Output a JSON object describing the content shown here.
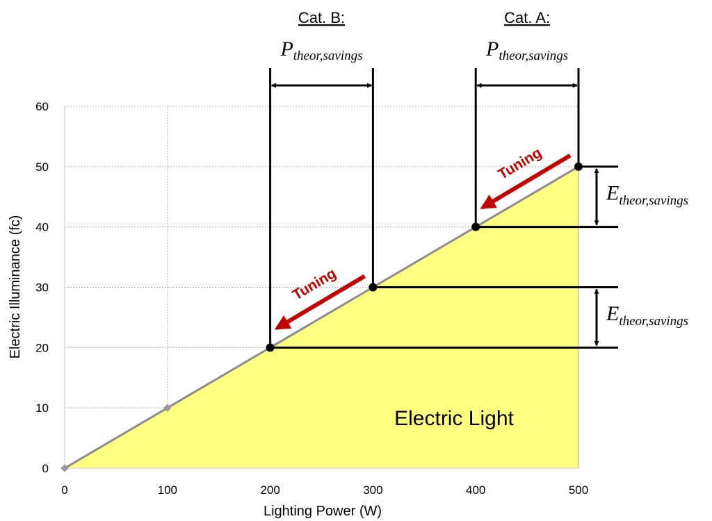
{
  "chart_data": {
    "type": "area",
    "xlabel": "Lighting Power (W)",
    "ylabel": "Electric Illuminance (fc)",
    "xlim": [
      0,
      500
    ],
    "ylim": [
      0,
      60
    ],
    "x_ticks": [
      "0",
      "100",
      "200",
      "300",
      "400",
      "500"
    ],
    "y_ticks": [
      "0",
      "10",
      "20",
      "30",
      "40",
      "50",
      "60"
    ],
    "grid": true,
    "series": [
      {
        "x": [
          0,
          100,
          200,
          300,
          400,
          500
        ],
        "y": [
          0,
          10,
          20,
          30,
          40,
          50
        ]
      }
    ],
    "markers": [
      [
        200,
        20
      ],
      [
        300,
        30
      ],
      [
        400,
        40
      ],
      [
        500,
        50
      ]
    ],
    "area_label": "Electric Light",
    "categories": [
      {
        "title": "Cat. B:",
        "x_range": [
          200,
          300
        ],
        "y_range": [
          20,
          30
        ]
      },
      {
        "title": "Cat. A:",
        "x_range": [
          400,
          500
        ],
        "y_range": [
          40,
          50
        ]
      }
    ],
    "annotation": {
      "tuning": "Tuning",
      "p_symbol": "P",
      "p_subscript": "theor,savings",
      "e_symbol": "E",
      "e_subscript": "theor,savings"
    },
    "colors": {
      "fill": "#ffff80",
      "line": "#8c8c8c",
      "arrow": "#c00000",
      "marker": "#000000"
    }
  }
}
